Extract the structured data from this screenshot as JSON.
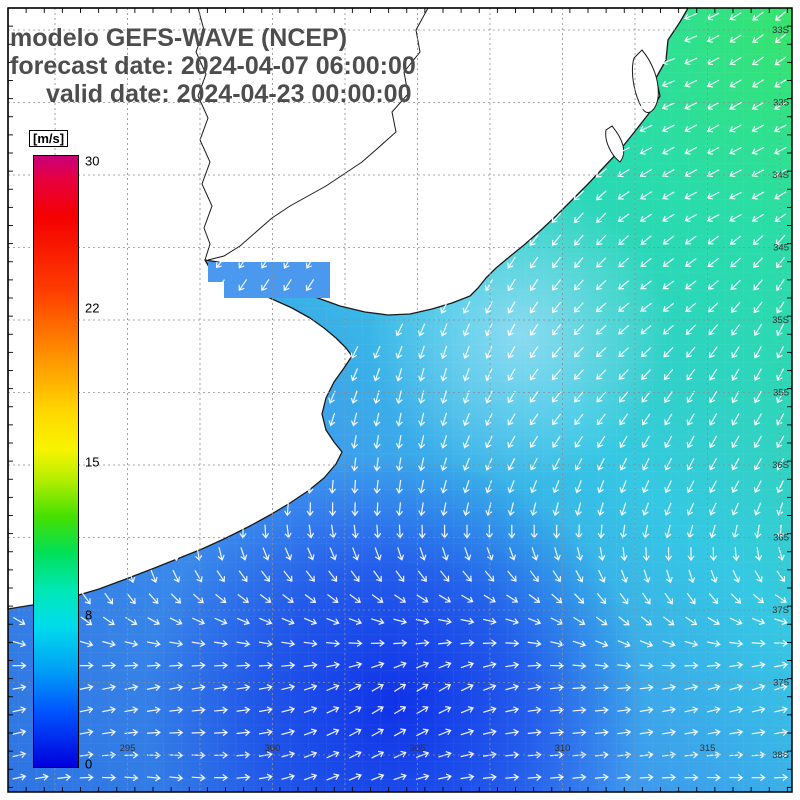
{
  "title": {
    "line1": "modelo GEFS-WAVE (NCEP)",
    "line2": "forecast date: 2024-04-07 06:00:00",
    "line3": "valid date: 2024-04-23 00:00:00"
  },
  "colorbar": {
    "unit_label": "[m/s]",
    "tick_labels": [
      "30",
      "22",
      "15",
      "8",
      "0"
    ],
    "stops": [
      [
        "0%",
        "#c8007a"
      ],
      [
        "4%",
        "#e8003c"
      ],
      [
        "10%",
        "#f40000"
      ],
      [
        "22%",
        "#ff3c00"
      ],
      [
        "32%",
        "#ff8c00"
      ],
      [
        "42%",
        "#ffd800"
      ],
      [
        "48%",
        "#f8f400"
      ],
      [
        "53%",
        "#b4ee00"
      ],
      [
        "59%",
        "#46e000"
      ],
      [
        "65%",
        "#00e05a"
      ],
      [
        "71%",
        "#00e8b4"
      ],
      [
        "77%",
        "#00dcec"
      ],
      [
        "84%",
        "#00a0f4"
      ],
      [
        "91%",
        "#0054ff"
      ],
      [
        "100%",
        "#0000dc"
      ]
    ]
  },
  "map": {
    "right_axis_labels": [
      "33S",
      "335",
      "34S",
      "345",
      "35S",
      "355",
      "36S",
      "365",
      "37S",
      "375",
      "38S"
    ],
    "bottom_axis_labels": [
      "295",
      "300",
      "305",
      "310",
      "315"
    ],
    "arrow_color": "#ffffff",
    "land_color": "#ffffff",
    "coast_color": "#1a1a1a",
    "grid_color": "#8c8c8c",
    "axis_label_color": "#333333",
    "ocean_palette": {
      "low": "#2e74e2",
      "mid": "#3f93ee",
      "cyan": "#35c8e4",
      "teal": "#2fd9a8",
      "green": "#3ee873",
      "deep": "#0a28e8",
      "coastal_light": "#a8e0f6",
      "estuary_cell": "#4a99ee"
    }
  },
  "field_info": {
    "model": "GEFS-WAVE (NCEP)",
    "units": "m/s",
    "scale_min": 0,
    "scale_max": 30
  }
}
